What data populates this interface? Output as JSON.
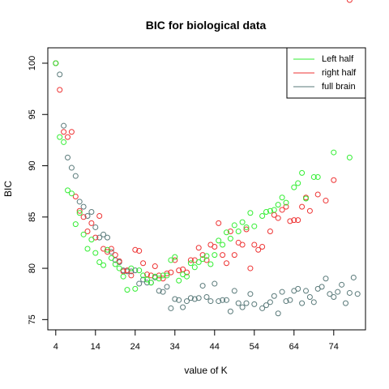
{
  "chart_data": {
    "type": "scatter",
    "title": "BIC for biological data",
    "xlabel": "value of K",
    "ylabel": "BIC",
    "xlim": [
      2,
      82
    ],
    "ylim": [
      74,
      101.5
    ],
    "xticks": [
      4,
      14,
      24,
      34,
      44,
      54,
      64,
      74
    ],
    "yticks": [
      75,
      80,
      85,
      90,
      95,
      100
    ],
    "legend_position": "top-right",
    "grid": false,
    "series": [
      {
        "name": "Left half",
        "color": "#33ee33",
        "x": [
          4,
          5,
          6,
          7,
          8,
          9,
          10,
          11,
          12,
          13,
          14,
          15,
          16,
          17,
          18,
          19,
          20,
          21,
          22,
          23,
          24,
          25,
          26,
          27,
          28,
          29,
          30,
          31,
          32,
          33,
          34,
          35,
          36,
          37,
          38,
          39,
          40,
          41,
          42,
          43,
          44,
          45,
          46,
          47,
          48,
          49,
          50,
          51,
          52,
          53,
          54,
          55,
          56,
          57,
          58,
          59,
          60,
          61,
          62,
          63,
          64,
          65,
          66,
          67,
          68,
          69,
          70,
          71,
          72,
          73,
          74,
          75,
          76,
          77,
          78,
          79
        ],
        "y": [
          100,
          92.8,
          92.3,
          87.6,
          87.3,
          84.3,
          85.4,
          83.3,
          81.9,
          82.8,
          81.5,
          80.6,
          80.3,
          81.8,
          81.0,
          80.4,
          80.0,
          79.2,
          77.9,
          80.0,
          78.0,
          79.8,
          79.3,
          78.9,
          78.6,
          79.2,
          79.0,
          79.3,
          79.3,
          80.8,
          81.1,
          78.8,
          79.4,
          79.2,
          80.5,
          80.1,
          80.6,
          80.9,
          81.2,
          80.4,
          81.3,
          82.7,
          82.3,
          83.5,
          82.9,
          84.2,
          83.6,
          84.5,
          84.0,
          85.4,
          84.1,
          83.8,
          85.1,
          85.5,
          85.6,
          85.7,
          86.2,
          86.9,
          86.4,
          86.8,
          87.9,
          88.3,
          89.3,
          86.8,
          89.1,
          88.9,
          87.7,
          88.6,
          88.8,
          88.1,
          91.2,
          89.3,
          88.1,
          89.9,
          90.7,
          88.7
        ],
        "show_x": [
          4,
          5,
          6,
          7,
          8,
          9,
          10,
          11,
          12,
          13,
          14,
          15,
          16,
          17,
          18,
          19,
          20,
          21,
          22,
          23,
          24,
          25,
          26,
          27,
          28,
          29,
          30,
          31,
          32,
          33,
          34,
          35,
          36,
          37,
          38,
          39,
          40,
          41,
          42,
          43,
          44,
          45,
          46,
          47,
          48,
          49,
          50,
          51,
          52,
          53,
          54,
          56,
          57,
          58,
          59,
          60,
          61,
          62,
          64,
          65,
          66,
          67,
          69,
          70,
          74,
          78
        ],
        "show_y": [
          100,
          92.8,
          92.3,
          87.6,
          87.3,
          84.3,
          85.4,
          83.3,
          81.9,
          82.8,
          81.5,
          80.6,
          80.3,
          81.8,
          81.0,
          80.4,
          80.0,
          79.2,
          77.9,
          80.0,
          78.0,
          79.8,
          79.3,
          78.9,
          78.6,
          79.2,
          79.0,
          79.3,
          79.3,
          80.8,
          81.1,
          78.8,
          79.4,
          79.2,
          80.5,
          80.1,
          80.6,
          80.9,
          81.2,
          80.4,
          81.3,
          82.7,
          82.3,
          83.5,
          82.9,
          84.2,
          83.6,
          84.5,
          84.0,
          85.4,
          84.1,
          85.1,
          85.5,
          85.6,
          85.7,
          86.2,
          86.9,
          86.4,
          87.9,
          88.3,
          89.3,
          86.8,
          88.9,
          88.9,
          91.3,
          90.8
        ]
      },
      {
        "name": "right half",
        "color": "#ee3333",
        "x": [
          4,
          5,
          6,
          7,
          8,
          9,
          10,
          11,
          12,
          13,
          14,
          15,
          16,
          17,
          18,
          19,
          20,
          21,
          22,
          23,
          24,
          25,
          26,
          27,
          28,
          29,
          30,
          31,
          32,
          33,
          34,
          35,
          36,
          37,
          38,
          39,
          40,
          41,
          42,
          43,
          44,
          45,
          46,
          47,
          48,
          49,
          50,
          51,
          52,
          53,
          54,
          55,
          56,
          57,
          58,
          59,
          60,
          61,
          62,
          63,
          64,
          66,
          67,
          68,
          70,
          71,
          72,
          73,
          78
        ],
        "y": [
          100,
          97.4,
          93.3,
          92.8,
          93.3,
          87.0,
          85.6,
          85.0,
          83.6,
          84.4,
          83.0,
          85.1,
          81.9,
          81.6,
          81.9,
          81.3,
          80.7,
          79.7,
          79.8,
          79.3,
          81.8,
          81.7,
          80.5,
          79.4,
          79.3,
          80.2,
          79.3,
          79.0,
          79.5,
          79.6,
          80.8,
          79.8,
          79.9,
          79.6,
          80.8,
          80.8,
          82.0,
          81.3,
          80.8,
          82.3,
          82.1,
          84.4,
          81.3,
          80.5,
          83.6,
          81.3,
          82.5,
          82.3,
          83.8,
          80.0,
          82.3,
          81.8,
          82.1,
          83.6,
          85.2,
          84.9,
          85.7,
          86.0,
          85.2,
          84.6,
          84.7,
          84.7,
          86.0,
          86.9,
          85.6,
          86.8,
          87.2,
          86.6,
          88.6
        ],
        "show_x": [
          4,
          5,
          6,
          7,
          8,
          9,
          10,
          11,
          12,
          13,
          14,
          15,
          16,
          17,
          18,
          19,
          20,
          21,
          22,
          23,
          24,
          25,
          26,
          27,
          28,
          29,
          30,
          31,
          32,
          33,
          34,
          35,
          36,
          37,
          38,
          39,
          40,
          41,
          42,
          43,
          44,
          45,
          46,
          47,
          48,
          49,
          50,
          51,
          52,
          53,
          54,
          55,
          56,
          58,
          59,
          60,
          61,
          62,
          63,
          64,
          65,
          66,
          67,
          68,
          70,
          72,
          74,
          78
        ],
        "show_y": [
          100,
          97.4,
          93.3,
          92.8,
          93.3,
          87.0,
          85.6,
          85.0,
          83.6,
          84.4,
          83.0,
          85.1,
          81.9,
          81.6,
          81.9,
          81.3,
          80.7,
          79.7,
          79.8,
          79.3,
          81.8,
          81.7,
          80.5,
          79.4,
          79.3,
          80.2,
          79.3,
          79.0,
          79.5,
          79.6,
          80.8,
          79.8,
          79.9,
          79.6,
          80.8,
          80.8,
          82.0,
          81.3,
          80.8,
          82.3,
          82.1,
          84.4,
          81.3,
          80.5,
          83.6,
          81.3,
          82.5,
          82.3,
          83.8,
          80.0,
          82.3,
          81.8,
          82.1,
          83.6,
          85.2,
          84.9,
          85.7,
          86.0,
          84.6,
          84.7,
          84.7,
          86.0,
          86.9,
          85.6,
          87.2,
          86.6,
          88.6
        ]
      },
      {
        "name": "full brain",
        "color": "#5a7a7a",
        "x": [
          4,
          5,
          6,
          7,
          8,
          9,
          10,
          11,
          12,
          13,
          14,
          15,
          16,
          17,
          18,
          19,
          20,
          21,
          22,
          23,
          24,
          25,
          26,
          27,
          28,
          29,
          30,
          31,
          32,
          33,
          34,
          35,
          36,
          37,
          38,
          39,
          40,
          41,
          42,
          43,
          44,
          45,
          46,
          47,
          48,
          49,
          50,
          51,
          52,
          53,
          54,
          56,
          57,
          58,
          59,
          60,
          61,
          62,
          63,
          64,
          65,
          66,
          67,
          68,
          69,
          70,
          71,
          72,
          73,
          74,
          75,
          76,
          77,
          78,
          79,
          80
        ],
        "y": [
          100,
          98.9,
          93.9,
          90.8,
          89.8,
          89.0,
          86.5,
          86.0,
          85.1,
          85.5,
          84.0,
          83.0,
          83.3,
          83.0,
          81.6,
          80.8,
          80.6,
          79.8,
          79.7,
          79.7,
          79.8,
          78.5,
          78.9,
          78.6,
          78.6,
          79.1,
          77.8,
          77.7,
          78.2,
          76.1,
          77.0,
          76.9,
          76.2,
          76.8,
          77.1,
          77.0,
          77.1,
          78.3,
          77.2,
          76.8,
          78.5,
          76.8,
          76.9,
          76.9,
          75.8,
          77.8,
          76.6,
          76.2,
          76.6,
          77.5,
          76.5,
          76.1,
          76.4,
          76.7,
          77.3,
          75.6,
          77.7,
          76.8,
          76.9,
          77.8,
          78.0,
          76.6,
          77.8,
          77.2,
          76.7,
          78.0,
          78.2,
          79.0,
          77.5,
          77.2,
          77.7,
          78.4,
          76.6,
          77.6,
          79.1,
          77.5
        ],
        "show_x": [
          4,
          5,
          6,
          7,
          8,
          9,
          10,
          11,
          12,
          13,
          14,
          15,
          16,
          17,
          18,
          19,
          20,
          21,
          22,
          23,
          24,
          25,
          26,
          27,
          28,
          29,
          30,
          31,
          32,
          33,
          34,
          35,
          36,
          37,
          38,
          39,
          40,
          41,
          42,
          43,
          44,
          45,
          46,
          47,
          48,
          49,
          50,
          51,
          52,
          53,
          54,
          56,
          57,
          58,
          59,
          60,
          61,
          62,
          63,
          64,
          65,
          66,
          67,
          68,
          69,
          70,
          71,
          72,
          73,
          74,
          75,
          76,
          77,
          78,
          79,
          80
        ],
        "show_y": [
          100,
          98.9,
          93.9,
          90.8,
          89.8,
          89.0,
          86.5,
          86.0,
          85.1,
          85.5,
          84.0,
          83.0,
          83.3,
          83.0,
          81.6,
          80.8,
          80.6,
          79.8,
          79.7,
          79.7,
          79.8,
          78.5,
          78.9,
          78.6,
          78.6,
          79.1,
          77.8,
          77.7,
          78.2,
          76.1,
          77.0,
          76.9,
          76.2,
          76.8,
          77.1,
          77.0,
          77.1,
          78.3,
          77.2,
          76.8,
          78.5,
          76.8,
          76.9,
          76.9,
          75.8,
          77.8,
          76.6,
          76.2,
          76.6,
          77.5,
          76.5,
          76.1,
          76.4,
          76.7,
          77.3,
          75.6,
          77.7,
          76.8,
          76.9,
          77.8,
          78.0,
          76.6,
          77.8,
          77.2,
          76.7,
          78.0,
          78.2,
          79.0,
          77.5,
          77.2,
          77.7,
          78.4,
          76.6,
          77.6,
          79.1,
          77.5
        ]
      }
    ]
  }
}
